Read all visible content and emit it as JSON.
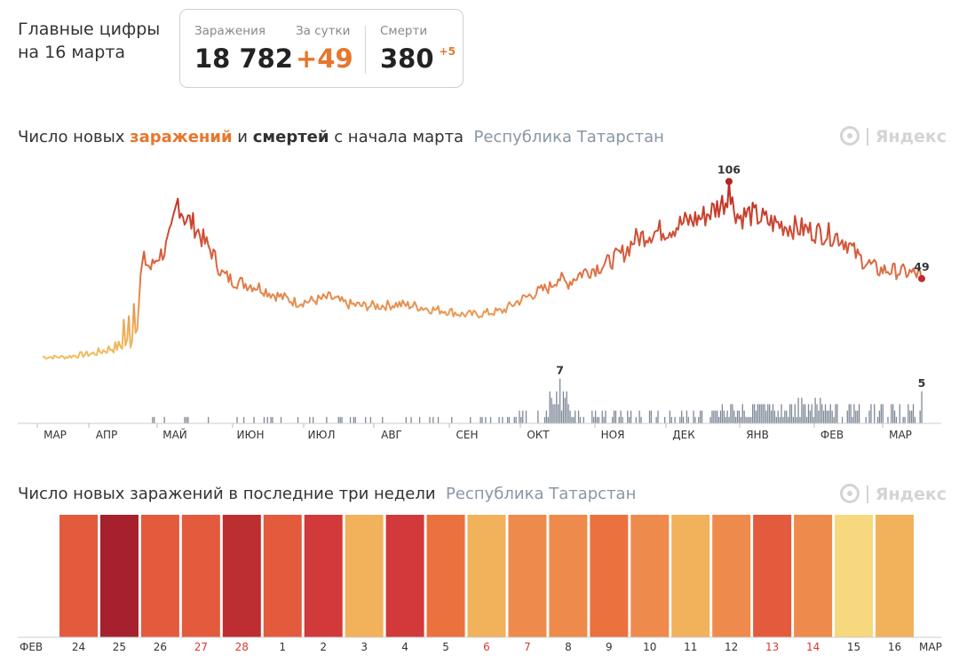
{
  "header": {
    "line1": "Главные цифры",
    "line2": "на 16 марта",
    "stats": {
      "cases_label": "Заражения",
      "cases_value": "18 782",
      "daily_label": "За сутки",
      "daily_value": "+49",
      "deaths_label": "Смерти",
      "deaths_value": "380",
      "deaths_delta": "+5"
    }
  },
  "chart1": {
    "title_pre": "Число новых ",
    "title_cases": "заражений",
    "title_and": " и ",
    "title_deaths": "смертей",
    "title_post": " с начала марта",
    "region": "Республика Татарстан",
    "logo_text": "Яндекс"
  },
  "chart2": {
    "title": "Число новых заражений в последние три недели",
    "region": "Республика Татарстан",
    "logo_text": "Яндекс"
  },
  "chart_data": [
    {
      "type": "line",
      "series": [
        {
          "key": "cases",
          "anchors": [
            [
              0,
              3
            ],
            [
              14,
              3
            ],
            [
              20,
              4
            ],
            [
              30,
              5
            ],
            [
              40,
              8
            ],
            [
              48,
              10
            ],
            [
              52,
              12
            ],
            [
              56,
              30
            ],
            [
              60,
              60
            ],
            [
              64,
              55
            ],
            [
              68,
              62
            ],
            [
              72,
              65
            ],
            [
              76,
              75
            ],
            [
              80,
              95
            ],
            [
              84,
              85
            ],
            [
              90,
              80
            ],
            [
              96,
              70
            ],
            [
              100,
              65
            ],
            [
              106,
              52
            ],
            [
              112,
              48
            ],
            [
              120,
              46
            ],
            [
              128,
              44
            ],
            [
              136,
              40
            ],
            [
              145,
              37
            ],
            [
              150,
              35
            ],
            [
              160,
              36
            ],
            [
              170,
              38
            ],
            [
              180,
              34
            ],
            [
              190,
              33
            ],
            [
              200,
              33
            ],
            [
              210,
              34
            ],
            [
              220,
              33
            ],
            [
              230,
              31
            ],
            [
              240,
              30
            ],
            [
              248,
              28
            ],
            [
              256,
              28
            ],
            [
              264,
              29
            ],
            [
              272,
              30
            ],
            [
              280,
              35
            ],
            [
              290,
              40
            ],
            [
              300,
              44
            ],
            [
              305,
              50
            ],
            [
              310,
              46
            ],
            [
              318,
              52
            ],
            [
              326,
              55
            ],
            [
              334,
              58
            ],
            [
              340,
              62
            ],
            [
              345,
              65
            ],
            [
              350,
              72
            ],
            [
              360,
              76
            ],
            [
              370,
              78
            ],
            [
              380,
              82
            ],
            [
              390,
              85
            ],
            [
              398,
              90
            ],
            [
              404,
              95
            ],
            [
              408,
              93
            ],
            [
              412,
              85
            ],
            [
              418,
              87
            ],
            [
              424,
              85
            ],
            [
              430,
              82
            ],
            [
              440,
              80
            ],
            [
              450,
              78
            ],
            [
              460,
              76
            ],
            [
              470,
              74
            ],
            [
              476,
              70
            ],
            [
              482,
              62
            ],
            [
              488,
              58
            ],
            [
              494,
              54
            ],
            [
              500,
              54
            ],
            [
              508,
              53
            ],
            [
              515,
              52
            ],
            [
              520,
              51
            ]
          ],
          "labels": [
            {
              "day": 406,
              "value": 106
            },
            {
              "day": 520,
              "value": 49
            }
          ]
        },
        {
          "key": "deaths",
          "summary": "≈0–3 в день; макс. 7 (окт), 5 на 16 марта",
          "labels": [
            {
              "day": 306,
              "value": 7
            },
            {
              "day": 520,
              "value": 5
            }
          ]
        }
      ],
      "x_ticks": [
        "МАР",
        "АПР",
        "МАЙ",
        "ИЮН",
        "ИЮЛ",
        "АВГ",
        "СЕН",
        "ОКТ",
        "НОЯ",
        "ДЕК",
        "ЯНВ",
        "ФЕВ",
        "МАР"
      ],
      "grid": false
    },
    {
      "type": "bar",
      "categories": [
        "24",
        "25",
        "26",
        "27",
        "28",
        "1",
        "2",
        "3",
        "4",
        "5",
        "6",
        "7",
        "8",
        "9",
        "10",
        "11",
        "12",
        "13",
        "14",
        "15",
        "16"
      ],
      "values": [
        52,
        55,
        52,
        52,
        54,
        52,
        53,
        49,
        53,
        51,
        49,
        50,
        50,
        51,
        50,
        49,
        50,
        52,
        50,
        47,
        49
      ],
      "colors": [
        "#e35a3d",
        "#a6202e",
        "#e35a3d",
        "#e35a3d",
        "#bd2e30",
        "#e35a3d",
        "#d2393a",
        "#f1b25b",
        "#d2393a",
        "#eb713f",
        "#f1b25b",
        "#ee8a4b",
        "#ee8a4b",
        "#eb713f",
        "#ee8a4b",
        "#f1b25b",
        "#ee8a4b",
        "#e35a3d",
        "#ee8a4b",
        "#f6d97e",
        "#f1b25b"
      ],
      "weekend": [
        "27",
        "28",
        "6",
        "7",
        "13",
        "14"
      ],
      "month_left": "ФЕВ",
      "month_right": "МАР"
    }
  ]
}
